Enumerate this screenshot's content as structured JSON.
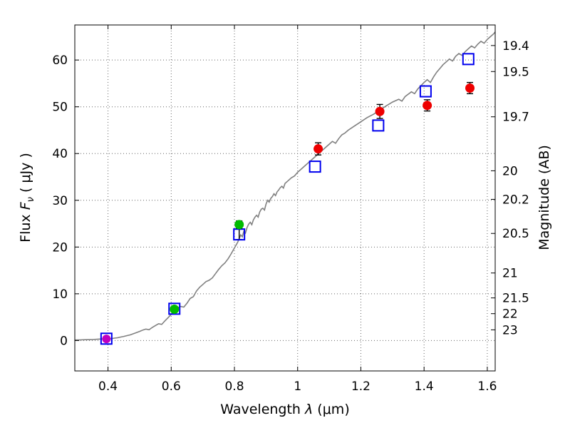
{
  "labels": {
    "xlabel_prefix": "Wavelength  ",
    "xlabel_symbol": "λ",
    "xlabel_units": " (μm)",
    "ylabel_prefix": "Flux  ",
    "ylabel_symbol": "F",
    "ylabel_sub": "ν",
    "ylabel_units": "  ( μJy )",
    "y2label": "Magnitude (AB)"
  },
  "style": {
    "background": "#ffffff",
    "frame_color": "#000000",
    "grid_color": "#666666",
    "errorbar_color": "#000000"
  },
  "chart_data": {
    "type": "line",
    "title": "",
    "xlabel": "Wavelength λ (μm)",
    "ylabel": "Flux Fν ( μJy )",
    "y2label": "Magnitude (AB)",
    "xlim": [
      0.295,
      1.625
    ],
    "ylim": [
      -6.5,
      67.5
    ],
    "grid": true,
    "legend": "none",
    "xticks": {
      "values": [
        0.4,
        0.6,
        0.8,
        1.0,
        1.2,
        1.4,
        1.6
      ],
      "labels": [
        "0.4",
        "0.6",
        "0.8",
        "1",
        "1.2",
        "1.4",
        "1.6"
      ]
    },
    "yticks": {
      "values": [
        0,
        10,
        20,
        30,
        40,
        50,
        60
      ],
      "labels": [
        "0",
        "10",
        "20",
        "30",
        "40",
        "50",
        "60"
      ]
    },
    "y2ticks": [
      {
        "label": "19.4",
        "flux": 63.1
      },
      {
        "label": "19.5",
        "flux": 57.54
      },
      {
        "label": "19.7",
        "flux": 47.86
      },
      {
        "label": "20",
        "flux": 36.31
      },
      {
        "label": "20.2",
        "flux": 30.2
      },
      {
        "label": "20.5",
        "flux": 22.91
      },
      {
        "label": "21",
        "flux": 14.45
      },
      {
        "label": "21.5",
        "flux": 9.12
      },
      {
        "label": "22",
        "flux": 5.75
      },
      {
        "label": "23",
        "flux": 2.29
      }
    ],
    "series": [
      {
        "name": "model-spectrum-line",
        "type": "line",
        "color": "#808080",
        "linewidth": 1.6,
        "points": [
          [
            0.295,
            0.1
          ],
          [
            0.31,
            0.14
          ],
          [
            0.33,
            0.18
          ],
          [
            0.35,
            0.22
          ],
          [
            0.37,
            0.3
          ],
          [
            0.39,
            0.38
          ],
          [
            0.4,
            0.42
          ],
          [
            0.41,
            0.4
          ],
          [
            0.42,
            0.52
          ],
          [
            0.43,
            0.6
          ],
          [
            0.44,
            0.75
          ],
          [
            0.45,
            0.88
          ],
          [
            0.46,
            1.05
          ],
          [
            0.47,
            1.2
          ],
          [
            0.48,
            1.45
          ],
          [
            0.49,
            1.7
          ],
          [
            0.5,
            1.95
          ],
          [
            0.51,
            2.25
          ],
          [
            0.52,
            2.45
          ],
          [
            0.53,
            2.3
          ],
          [
            0.54,
            2.8
          ],
          [
            0.55,
            3.2
          ],
          [
            0.56,
            3.6
          ],
          [
            0.57,
            3.45
          ],
          [
            0.58,
            4.2
          ],
          [
            0.59,
            4.9
          ],
          [
            0.6,
            5.6
          ],
          [
            0.61,
            6.4
          ],
          [
            0.62,
            7.0
          ],
          [
            0.63,
            7.3
          ],
          [
            0.64,
            7.15
          ],
          [
            0.65,
            8.0
          ],
          [
            0.66,
            9.0
          ],
          [
            0.67,
            9.4
          ],
          [
            0.68,
            10.6
          ],
          [
            0.69,
            11.4
          ],
          [
            0.7,
            12.0
          ],
          [
            0.71,
            12.6
          ],
          [
            0.72,
            12.9
          ],
          [
            0.73,
            13.4
          ],
          [
            0.74,
            14.3
          ],
          [
            0.75,
            15.2
          ],
          [
            0.76,
            16.0
          ],
          [
            0.77,
            16.6
          ],
          [
            0.78,
            17.5
          ],
          [
            0.79,
            18.6
          ],
          [
            0.8,
            19.8
          ],
          [
            0.81,
            21.0
          ],
          [
            0.815,
            21.8
          ],
          [
            0.82,
            22.6
          ],
          [
            0.825,
            22.2
          ],
          [
            0.83,
            23.4
          ],
          [
            0.835,
            23.0
          ],
          [
            0.84,
            24.2
          ],
          [
            0.845,
            24.9
          ],
          [
            0.85,
            25.3
          ],
          [
            0.855,
            24.8
          ],
          [
            0.86,
            25.8
          ],
          [
            0.865,
            26.4
          ],
          [
            0.87,
            26.8
          ],
          [
            0.875,
            26.4
          ],
          [
            0.88,
            27.5
          ],
          [
            0.885,
            28.1
          ],
          [
            0.89,
            28.3
          ],
          [
            0.895,
            27.9
          ],
          [
            0.9,
            29.2
          ],
          [
            0.905,
            30.0
          ],
          [
            0.91,
            29.6
          ],
          [
            0.915,
            30.4
          ],
          [
            0.92,
            30.8
          ],
          [
            0.925,
            31.4
          ],
          [
            0.93,
            31.0
          ],
          [
            0.935,
            31.8
          ],
          [
            0.94,
            32.2
          ],
          [
            0.945,
            32.7
          ],
          [
            0.95,
            33.0
          ],
          [
            0.955,
            32.6
          ],
          [
            0.96,
            33.6
          ],
          [
            0.97,
            34.2
          ],
          [
            0.98,
            34.8
          ],
          [
            0.99,
            35.2
          ],
          [
            1.0,
            36.0
          ],
          [
            1.02,
            37.2
          ],
          [
            1.04,
            38.4
          ],
          [
            1.06,
            39.6
          ],
          [
            1.08,
            40.8
          ],
          [
            1.1,
            42.0
          ],
          [
            1.11,
            42.6
          ],
          [
            1.12,
            42.2
          ],
          [
            1.13,
            43.2
          ],
          [
            1.14,
            44.0
          ],
          [
            1.15,
            44.4
          ],
          [
            1.16,
            45.0
          ],
          [
            1.18,
            45.9
          ],
          [
            1.2,
            46.8
          ],
          [
            1.22,
            47.7
          ],
          [
            1.24,
            48.4
          ],
          [
            1.26,
            49.3
          ],
          [
            1.28,
            50.2
          ],
          [
            1.3,
            51.0
          ],
          [
            1.32,
            51.6
          ],
          [
            1.33,
            51.2
          ],
          [
            1.34,
            52.2
          ],
          [
            1.36,
            53.2
          ],
          [
            1.37,
            52.8
          ],
          [
            1.38,
            53.8
          ],
          [
            1.4,
            55.2
          ],
          [
            1.41,
            55.8
          ],
          [
            1.42,
            55.2
          ],
          [
            1.43,
            56.4
          ],
          [
            1.44,
            57.4
          ],
          [
            1.45,
            58.2
          ],
          [
            1.46,
            59.0
          ],
          [
            1.47,
            59.6
          ],
          [
            1.48,
            60.2
          ],
          [
            1.49,
            59.8
          ],
          [
            1.5,
            60.8
          ],
          [
            1.51,
            61.4
          ],
          [
            1.52,
            61.0
          ],
          [
            1.53,
            61.8
          ],
          [
            1.54,
            62.4
          ],
          [
            1.55,
            63.0
          ],
          [
            1.56,
            62.6
          ],
          [
            1.57,
            63.4
          ],
          [
            1.58,
            64.0
          ],
          [
            1.59,
            63.6
          ],
          [
            1.6,
            64.4
          ],
          [
            1.61,
            65.0
          ],
          [
            1.62,
            65.6
          ],
          [
            1.625,
            66.0
          ]
        ]
      },
      {
        "name": "model-photometry-squares",
        "type": "open-square",
        "color": "#0000ee",
        "markersize": 15,
        "points": [
          [
            0.395,
            0.4,
            0
          ],
          [
            0.61,
            6.8,
            0
          ],
          [
            0.815,
            22.7,
            1.1
          ],
          [
            1.055,
            37.2,
            0
          ],
          [
            1.255,
            46.0,
            0
          ],
          [
            1.405,
            53.3,
            0
          ],
          [
            1.54,
            60.2,
            0
          ]
        ]
      },
      {
        "name": "observed-photometry-red",
        "type": "circle",
        "color": "#ee0000",
        "markersize": 13,
        "points": [
          [
            1.065,
            41.0,
            1.3
          ],
          [
            1.26,
            49.0,
            1.5
          ],
          [
            1.41,
            50.3,
            1.2
          ],
          [
            1.545,
            54.0,
            1.2
          ]
        ]
      },
      {
        "name": "observed-photometry-green",
        "type": "circle",
        "color": "#00bb00",
        "markersize": 13,
        "points": [
          [
            0.61,
            6.7,
            0.5
          ],
          [
            0.815,
            24.8,
            0.8
          ]
        ]
      },
      {
        "name": "observed-photometry-magenta",
        "type": "circle",
        "color": "#bf00bf",
        "markersize": 12,
        "points": [
          [
            0.395,
            0.35,
            0.5
          ]
        ]
      }
    ]
  }
}
